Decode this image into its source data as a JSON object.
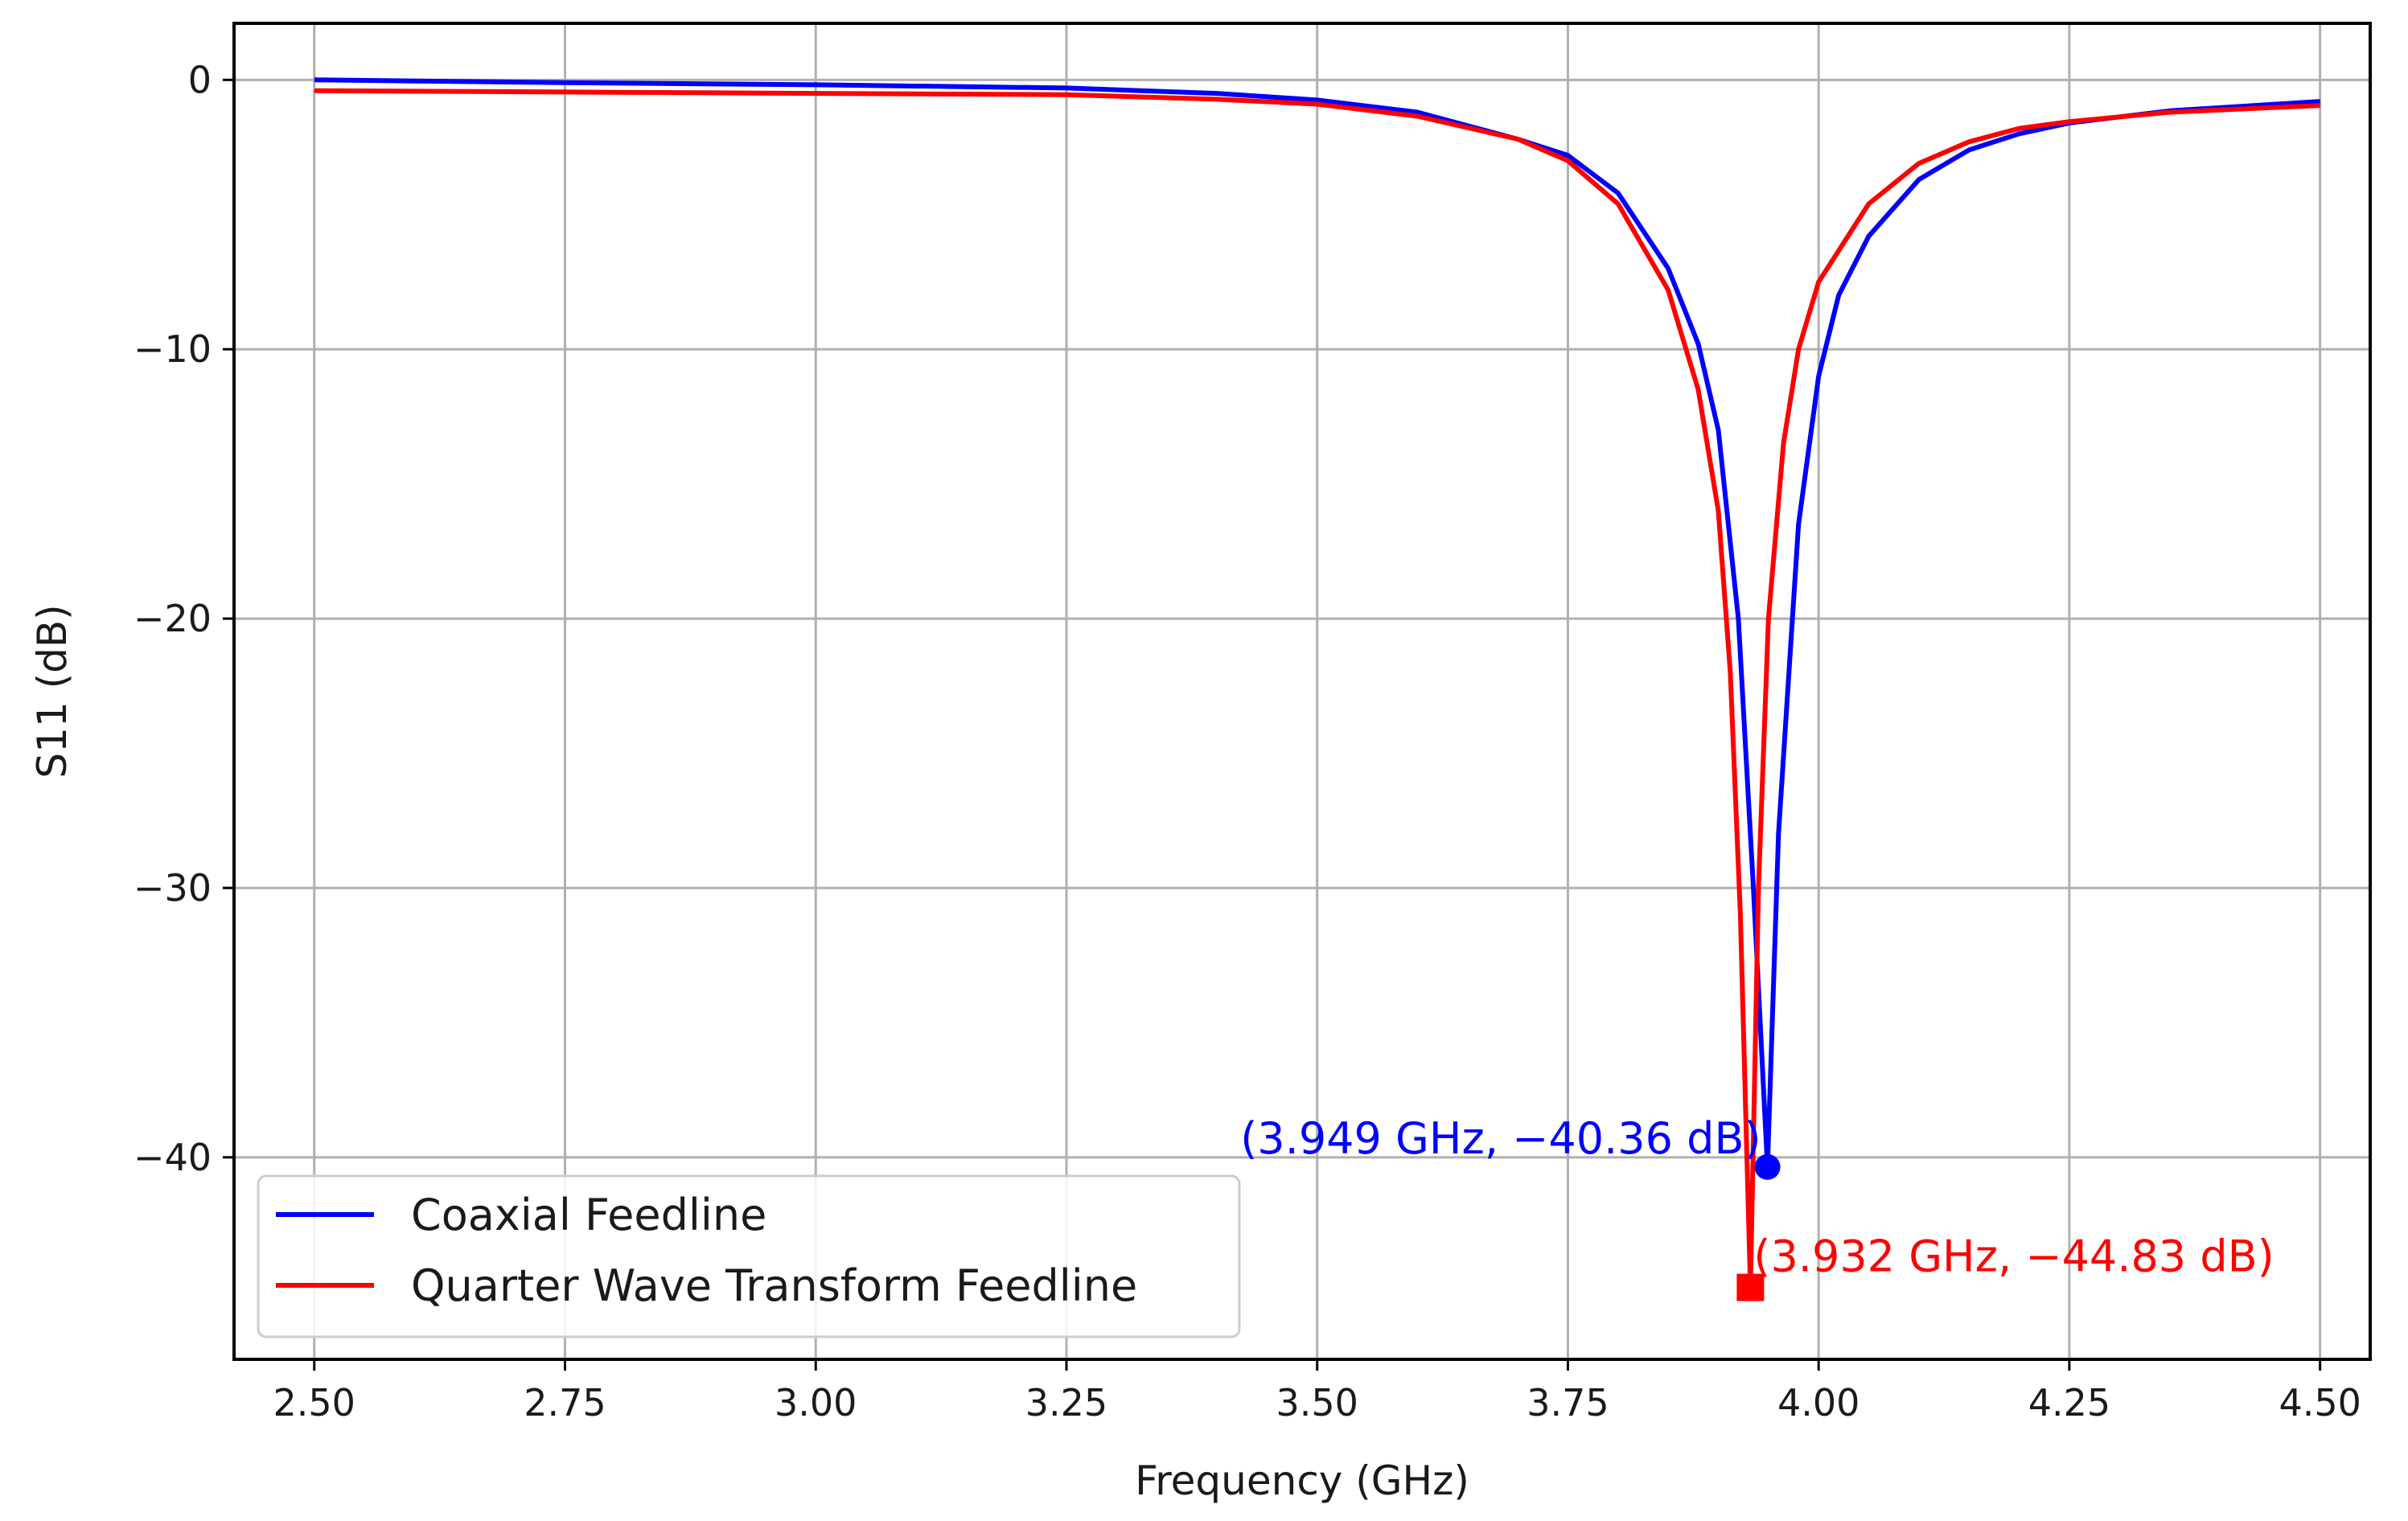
{
  "chart_data": {
    "type": "line",
    "title": "",
    "xlabel": "Frequency (GHz)",
    "ylabel": "S11 (dB)",
    "xlim": [
      2.42,
      4.55
    ],
    "ylim": [
      -47.5,
      2.1
    ],
    "grid": true,
    "xticks": [
      {
        "value": 2.5,
        "label": "2.50"
      },
      {
        "value": 2.75,
        "label": "2.75"
      },
      {
        "value": 3.0,
        "label": "3.00"
      },
      {
        "value": 3.25,
        "label": "3.25"
      },
      {
        "value": 3.5,
        "label": "3.50"
      },
      {
        "value": 3.75,
        "label": "3.75"
      },
      {
        "value": 4.0,
        "label": "4.00"
      },
      {
        "value": 4.25,
        "label": "4.25"
      },
      {
        "value": 4.5,
        "label": "4.50"
      }
    ],
    "yticks": [
      {
        "value": 0,
        "label": "0"
      },
      {
        "value": -10,
        "label": "−10"
      },
      {
        "value": -20,
        "label": "−20"
      },
      {
        "value": -30,
        "label": "−30"
      },
      {
        "value": -40,
        "label": "−40"
      }
    ],
    "legend": {
      "position": "lower-left",
      "entries": [
        "Coaxial Feedline",
        "Quarter Wave Transform Feedline"
      ]
    },
    "series": [
      {
        "name": "Coaxial Feedline",
        "color": "#0000ff",
        "x": [
          2.5,
          2.75,
          3.0,
          3.25,
          3.4,
          3.5,
          3.6,
          3.7,
          3.75,
          3.8,
          3.85,
          3.88,
          3.9,
          3.92,
          3.935,
          3.949,
          3.96,
          3.98,
          4.0,
          4.02,
          4.05,
          4.1,
          4.15,
          4.2,
          4.25,
          4.35,
          4.5
        ],
        "y": [
          0.0,
          -0.1,
          -0.18,
          -0.3,
          -0.5,
          -0.75,
          -1.2,
          -2.2,
          -2.8,
          -4.2,
          -7.0,
          -9.8,
          -13.0,
          -20.0,
          -30.0,
          -40.36,
          -28.0,
          -16.5,
          -11.0,
          -8.0,
          -5.8,
          -3.7,
          -2.6,
          -2.0,
          -1.6,
          -1.15,
          -0.8
        ]
      },
      {
        "name": "Quarter Wave Transform Feedline",
        "color": "#ff0000",
        "x": [
          2.5,
          2.75,
          3.0,
          3.25,
          3.4,
          3.5,
          3.6,
          3.7,
          3.75,
          3.8,
          3.85,
          3.88,
          3.9,
          3.912,
          3.922,
          3.932,
          3.94,
          3.95,
          3.965,
          3.98,
          4.0,
          4.05,
          4.1,
          4.15,
          4.2,
          4.25,
          4.35,
          4.5
        ],
        "y": [
          -0.4,
          -0.45,
          -0.5,
          -0.55,
          -0.72,
          -0.9,
          -1.35,
          -2.2,
          -3.0,
          -4.6,
          -7.8,
          -11.5,
          -16.0,
          -22.0,
          -31.0,
          -44.83,
          -30.0,
          -20.0,
          -13.5,
          -10.0,
          -7.5,
          -4.6,
          -3.1,
          -2.3,
          -1.8,
          -1.55,
          -1.2,
          -0.95
        ]
      }
    ],
    "annotations": [
      {
        "series": "Coaxial Feedline",
        "marker": "circle",
        "x": 3.949,
        "y": -40.36,
        "text": "(3.949 GHz, −40.36 dB)",
        "color": "#0000ff"
      },
      {
        "series": "Quarter Wave Transform Feedline",
        "marker": "square",
        "x": 3.932,
        "y": -44.83,
        "text": "(3.932 GHz, −44.83 dB)",
        "color": "#ff0000"
      }
    ]
  }
}
